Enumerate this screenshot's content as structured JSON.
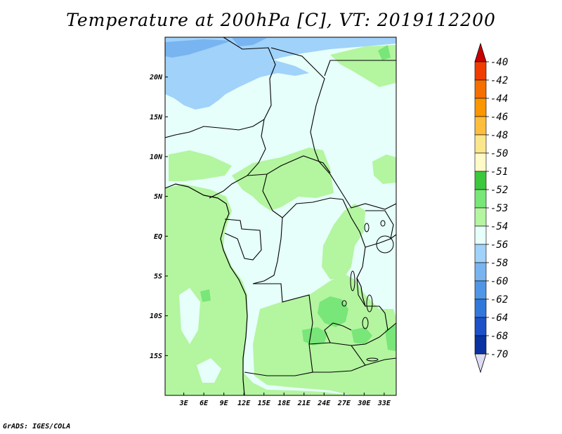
{
  "title": "Temperature at 200hPa [C], VT: 2019112200",
  "credit": "GrADS: IGES/COLA",
  "map": {
    "lat_ticks": [
      "20N",
      "15N",
      "10N",
      "5N",
      "EQ",
      "5S",
      "10S",
      "15S"
    ],
    "lat_values": [
      20,
      15,
      10,
      5,
      0,
      -5,
      -10,
      -15
    ],
    "lon_ticks": [
      "3E",
      "6E",
      "9E",
      "12E",
      "15E",
      "18E",
      "21E",
      "24E",
      "27E",
      "30E",
      "33E"
    ],
    "lon_values": [
      3,
      6,
      9,
      12,
      15,
      18,
      21,
      24,
      27,
      30,
      33
    ],
    "lon_range": [
      0.2,
      34.8
    ],
    "lat_range": [
      -20,
      25
    ]
  },
  "colorbar": {
    "labels": [
      "-40",
      "-42",
      "-44",
      "-46",
      "-48",
      "-50",
      "-51",
      "-52",
      "-53",
      "-54",
      "-56",
      "-58",
      "-60",
      "-62",
      "-64",
      "-68",
      "-70"
    ],
    "colors": [
      "#e00000",
      "#f03c00",
      "#f56e00",
      "#fa9600",
      "#fcbe3c",
      "#fce68c",
      "#fffac8",
      "#3cc83c",
      "#78e678",
      "#b4f5a0",
      "#e6fffa",
      "#a0d2fa",
      "#78b4f0",
      "#5096e6",
      "#3278dc",
      "#1e50c8",
      "#0a32a0",
      "#000a64"
    ],
    "top_arrow_color": "#c80000",
    "bottom_arrow_color": "#dcdcf5"
  }
}
